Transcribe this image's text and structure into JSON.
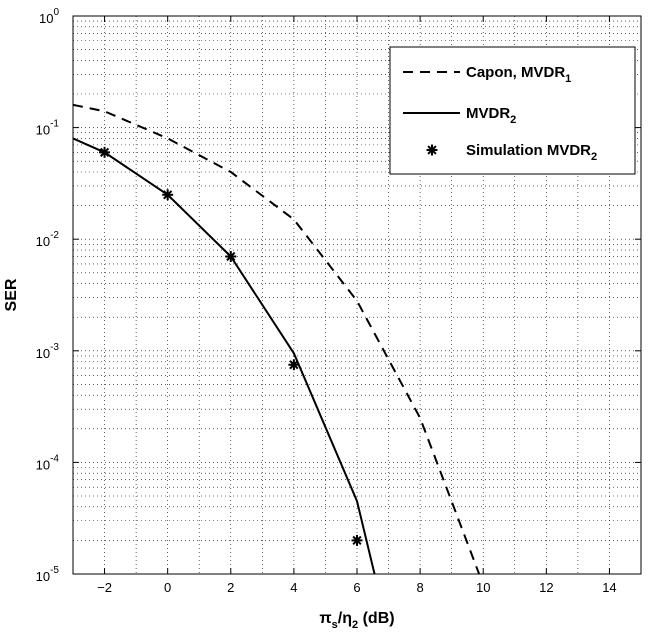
{
  "chart_data": {
    "type": "line",
    "xlabel": {
      "base": "π",
      "sub1": "s",
      "mid": "/η",
      "sub2": "2",
      "tail": " (dB)"
    },
    "ylabel": "SER",
    "xlim": [
      -3,
      15
    ],
    "ylim": [
      1e-05,
      1
    ],
    "yscale": "log",
    "grid": true,
    "x_ticks": [
      -2,
      0,
      2,
      4,
      6,
      8,
      10,
      12,
      14
    ],
    "x_tick_labels": [
      "−2",
      "0",
      "2",
      "4",
      "6",
      "8",
      "10",
      "12",
      "14"
    ],
    "y_ticks": [
      {
        "value": 1,
        "base": "10",
        "exp": "0"
      },
      {
        "value": 0.1,
        "base": "10",
        "exp": "-1"
      },
      {
        "value": 0.01,
        "base": "10",
        "exp": "-2"
      },
      {
        "value": 0.001,
        "base": "10",
        "exp": "-3"
      },
      {
        "value": 0.0001,
        "base": "10",
        "exp": "-4"
      },
      {
        "value": 1e-05,
        "base": "10",
        "exp": "-5"
      }
    ],
    "legend_position": "top-right",
    "series": [
      {
        "name": "Capon, MVDR",
        "name_sub": "1",
        "style": "dashed",
        "x": [
          -3,
          -2,
          0,
          2,
          4,
          6,
          8,
          10
        ],
        "y": [
          0.16,
          0.14,
          0.08,
          0.04,
          0.015,
          0.0028,
          0.00025,
          8e-06
        ]
      },
      {
        "name": "MVDR",
        "name_sub": "2",
        "style": "solid",
        "x": [
          -3,
          -2,
          0,
          2,
          4,
          6,
          7
        ],
        "y": [
          0.08,
          0.06,
          0.025,
          0.007,
          0.00095,
          4.5e-05,
          3e-06
        ]
      },
      {
        "name": "Simulation MVDR",
        "name_sub": "2",
        "style": "markers",
        "x": [
          -2,
          0,
          2,
          4,
          6
        ],
        "y": [
          0.06,
          0.025,
          0.007,
          0.00075,
          2e-05
        ]
      }
    ]
  }
}
